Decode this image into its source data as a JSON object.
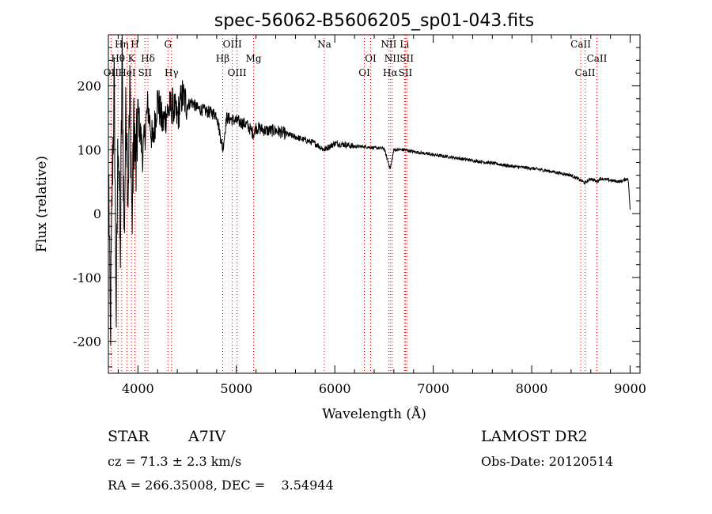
{
  "chart_data": {
    "type": "line",
    "title": "spec-56062-B5606205_sp01-043.fits",
    "xlabel": "Wavelength (Å)",
    "ylabel": "Flux (relative)",
    "xlim": [
      3700,
      9100
    ],
    "ylim": [
      -250,
      280
    ],
    "xticks": [
      "4000",
      "5000",
      "6000",
      "7000",
      "8000",
      "9000"
    ],
    "yticks": [
      "-200",
      "-100",
      "0",
      "100",
      "200"
    ],
    "xtick_values": [
      4000,
      5000,
      6000,
      7000,
      8000,
      9000
    ],
    "ytick_values": [
      -200,
      -100,
      0,
      100,
      200
    ],
    "grid": false,
    "line_color": "#000000",
    "marker_color": "#cc0000",
    "spectrum_anchors": [
      [
        3705,
        40
      ],
      [
        3720,
        -200
      ],
      [
        3740,
        60
      ],
      [
        3760,
        200
      ],
      [
        3780,
        -160
      ],
      [
        3800,
        150
      ],
      [
        3820,
        -80
      ],
      [
        3840,
        250
      ],
      [
        3860,
        -40
      ],
      [
        3880,
        180
      ],
      [
        3900,
        40
      ],
      [
        3920,
        200
      ],
      [
        3940,
        -20
      ],
      [
        3960,
        150
      ],
      [
        3980,
        60
      ],
      [
        4000,
        160
      ],
      [
        4050,
        90
      ],
      [
        4100,
        170
      ],
      [
        4150,
        110
      ],
      [
        4200,
        180
      ],
      [
        4250,
        140
      ],
      [
        4300,
        160
      ],
      [
        4350,
        170
      ],
      [
        4400,
        150
      ],
      [
        4450,
        185
      ],
      [
        4500,
        170
      ],
      [
        4550,
        175
      ],
      [
        4600,
        165
      ],
      [
        4700,
        160
      ],
      [
        4800,
        155
      ],
      [
        4862,
        100
      ],
      [
        4900,
        150
      ],
      [
        5000,
        145
      ],
      [
        5100,
        140
      ],
      [
        5175,
        125
      ],
      [
        5200,
        135
      ],
      [
        5300,
        130
      ],
      [
        5400,
        130
      ],
      [
        5500,
        125
      ],
      [
        5600,
        120
      ],
      [
        5700,
        115
      ],
      [
        5800,
        110
      ],
      [
        5890,
        100
      ],
      [
        6000,
        110
      ],
      [
        6100,
        108
      ],
      [
        6200,
        105
      ],
      [
        6300,
        105
      ],
      [
        6400,
        103
      ],
      [
        6500,
        102
      ],
      [
        6563,
        70
      ],
      [
        6600,
        100
      ],
      [
        6700,
        100
      ],
      [
        6800,
        97
      ],
      [
        7000,
        92
      ],
      [
        7200,
        88
      ],
      [
        7400,
        83
      ],
      [
        7600,
        79
      ],
      [
        7800,
        74
      ],
      [
        8000,
        71
      ],
      [
        8200,
        66
      ],
      [
        8400,
        60
      ],
      [
        8498,
        52
      ],
      [
        8542,
        48
      ],
      [
        8600,
        55
      ],
      [
        8662,
        50
      ],
      [
        8700,
        55
      ],
      [
        8800,
        52
      ],
      [
        8900,
        50
      ],
      [
        8980,
        55
      ],
      [
        9000,
        5
      ]
    ],
    "line_markers": [
      {
        "wavelength": 3727,
        "label": "OII",
        "row": 3
      },
      {
        "wavelength": 3798,
        "label": "Hθ",
        "row": 2
      },
      {
        "wavelength": 3835,
        "label": "Hη",
        "row": 1
      },
      {
        "wavelength": 3889,
        "label": "HeI",
        "row": 3
      },
      {
        "wavelength": 3934,
        "label": "K",
        "row": 2
      },
      {
        "wavelength": 3969,
        "label": "H",
        "row": 1
      },
      {
        "wavelength": 4072,
        "label": "SII",
        "row": 3
      },
      {
        "wavelength": 4102,
        "label": "Hδ",
        "row": 2
      },
      {
        "wavelength": 4305,
        "label": "G",
        "row": 1
      },
      {
        "wavelength": 4341,
        "label": "Hγ",
        "row": 3
      },
      {
        "wavelength": 4861,
        "label": "Hβ",
        "row": 2
      },
      {
        "wavelength": 4959,
        "label": "OIII",
        "row": 1
      },
      {
        "wavelength": 5007,
        "label": "OIII",
        "row": 3
      },
      {
        "wavelength": 5175,
        "label": "Mg",
        "row": 2
      },
      {
        "wavelength": 5893,
        "label": "Na",
        "row": 1
      },
      {
        "wavelength": 6300,
        "label": "OI",
        "row": 3
      },
      {
        "wavelength": 6364,
        "label": "OI",
        "row": 2
      },
      {
        "wavelength": 6548,
        "label": "NII",
        "row": 1
      },
      {
        "wavelength": 6563,
        "label": "Hα",
        "row": 3
      },
      {
        "wavelength": 6583,
        "label": "NII",
        "row": 2
      },
      {
        "wavelength": 6708,
        "label": "Li",
        "row": 1
      },
      {
        "wavelength": 6717,
        "label": "SII",
        "row": 3
      },
      {
        "wavelength": 6731,
        "label": "SII",
        "row": 2
      },
      {
        "wavelength": 8498,
        "label": "CaII",
        "row": 1
      },
      {
        "wavelength": 8542,
        "label": "CaII",
        "row": 3
      },
      {
        "wavelength": 8662,
        "label": "CaII",
        "row": 2
      }
    ]
  },
  "info": {
    "object_type": "STAR",
    "subclass": "A7IV",
    "survey": "LAMOST DR2",
    "cz": "cz = 71.3 ± 2.3 km/s",
    "obs_date": "Obs-Date: 20120514",
    "coords": "RA = 266.35008, DEC =    3.54944"
  }
}
